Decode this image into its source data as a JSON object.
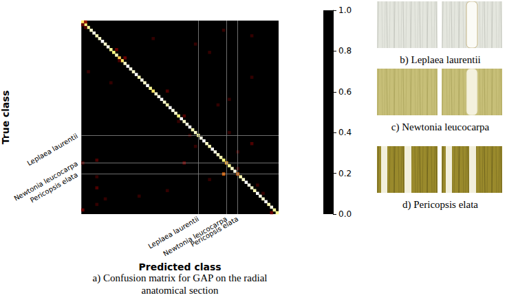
{
  "chart_data": {
    "type": "heatmap",
    "x_label": "Predicted class",
    "y_label": "True class",
    "caption": "a) Confusion matrix for GAP on the radial anatomical section",
    "grid": true,
    "categories": [
      null,
      null,
      null,
      null,
      null,
      null,
      null,
      null,
      null,
      null,
      null,
      null,
      null,
      null,
      null,
      null,
      null,
      null,
      null,
      null,
      null,
      null,
      null,
      null,
      null,
      null,
      null,
      null,
      null,
      null,
      null,
      null,
      null,
      null,
      null,
      null,
      null,
      null,
      null,
      null,
      null,
      "Leplaea laurentii",
      null,
      null,
      null,
      null,
      null,
      null,
      null,
      null,
      null,
      "Newtonia leucocarpa",
      null,
      null,
      null,
      "Pericopsis elata",
      null,
      null,
      null,
      null,
      null,
      null,
      null,
      null,
      null,
      null,
      null,
      null,
      null,
      null
    ],
    "cells": [
      [
        0,
        0,
        0.7
      ],
      [
        1,
        1,
        0.75
      ],
      [
        2,
        2,
        0.8
      ],
      [
        3,
        3,
        0.9
      ],
      [
        4,
        4,
        0.95
      ],
      [
        5,
        5,
        0.85
      ],
      [
        6,
        6,
        0.9
      ],
      [
        7,
        7,
        1.0
      ],
      [
        8,
        8,
        0.9
      ],
      [
        9,
        9,
        0.95
      ],
      [
        10,
        10,
        0.8
      ],
      [
        11,
        11,
        0.75
      ],
      [
        12,
        12,
        0.85
      ],
      [
        13,
        13,
        0.65
      ],
      [
        14,
        14,
        0.7
      ],
      [
        15,
        15,
        0.9
      ],
      [
        16,
        16,
        1.0
      ],
      [
        17,
        17,
        0.95
      ],
      [
        18,
        18,
        0.9
      ],
      [
        19,
        19,
        1.0
      ],
      [
        20,
        20,
        0.85
      ],
      [
        21,
        21,
        0.95
      ],
      [
        22,
        22,
        0.9
      ],
      [
        23,
        23,
        1.0
      ],
      [
        24,
        24,
        0.8
      ],
      [
        25,
        25,
        0.7
      ],
      [
        26,
        26,
        0.9
      ],
      [
        27,
        27,
        0.95
      ],
      [
        28,
        28,
        1.0
      ],
      [
        29,
        29,
        0.9
      ],
      [
        30,
        30,
        0.85
      ],
      [
        31,
        31,
        1.0
      ],
      [
        32,
        32,
        0.95
      ],
      [
        33,
        33,
        0.9
      ],
      [
        34,
        34,
        0.75
      ],
      [
        35,
        35,
        1.0
      ],
      [
        36,
        36,
        0.9
      ],
      [
        37,
        37,
        0.95
      ],
      [
        38,
        38,
        1.0
      ],
      [
        39,
        39,
        0.85
      ],
      [
        40,
        40,
        0.9
      ],
      [
        41,
        41,
        0.8
      ],
      [
        42,
        42,
        0.95
      ],
      [
        43,
        43,
        1.0
      ],
      [
        44,
        44,
        0.9
      ],
      [
        45,
        45,
        0.85
      ],
      [
        46,
        46,
        1.0
      ],
      [
        47,
        47,
        0.95
      ],
      [
        48,
        48,
        0.9
      ],
      [
        49,
        49,
        0.85
      ],
      [
        50,
        50,
        0.75
      ],
      [
        51,
        51,
        0.6
      ],
      [
        52,
        52,
        0.8
      ],
      [
        53,
        53,
        0.9
      ],
      [
        54,
        54,
        0.95
      ],
      [
        55,
        55,
        0.45
      ],
      [
        56,
        56,
        0.85
      ],
      [
        57,
        57,
        0.9
      ],
      [
        58,
        58,
        1.0
      ],
      [
        59,
        59,
        0.95
      ],
      [
        60,
        60,
        0.9
      ],
      [
        61,
        61,
        0.85
      ],
      [
        62,
        62,
        1.0
      ],
      [
        63,
        63,
        0.95
      ],
      [
        64,
        64,
        0.9
      ],
      [
        65,
        65,
        1.0
      ],
      [
        66,
        66,
        0.85
      ],
      [
        67,
        67,
        0.95
      ],
      [
        68,
        68,
        0.8
      ],
      [
        69,
        69,
        0.8
      ],
      [
        0,
        1,
        0.3
      ],
      [
        1,
        0,
        0.2
      ],
      [
        2,
        1,
        0.15
      ],
      [
        55,
        50,
        0.45
      ],
      [
        51,
        36,
        0.2
      ],
      [
        51,
        0,
        0.15
      ],
      [
        50,
        5,
        0.15
      ],
      [
        56,
        5,
        0.1
      ],
      [
        60,
        5,
        0.15
      ],
      [
        66,
        5,
        0.1
      ],
      [
        68,
        0,
        0.2
      ],
      [
        13,
        15,
        0.2
      ],
      [
        14,
        13,
        0.15
      ],
      [
        25,
        30,
        0.15
      ],
      [
        11,
        45,
        0.1
      ],
      [
        20,
        60,
        0.1
      ],
      [
        30,
        48,
        0.1
      ],
      [
        34,
        36,
        0.15
      ],
      [
        40,
        52,
        0.1
      ],
      [
        44,
        60,
        0.15
      ],
      [
        47,
        55,
        0.1
      ],
      [
        41,
        38,
        0.1
      ],
      [
        45,
        40,
        0.1
      ],
      [
        59,
        62,
        0.1
      ],
      [
        63,
        20,
        0.1
      ],
      [
        64,
        8,
        0.1
      ],
      [
        6,
        25,
        0.1
      ],
      [
        8,
        40,
        0.1
      ],
      [
        18,
        2,
        0.1
      ],
      [
        22,
        10,
        0.1
      ],
      [
        28,
        52,
        0.1
      ],
      [
        36,
        34,
        0.1
      ],
      [
        53,
        55,
        0.1
      ],
      [
        57,
        45,
        0.1
      ],
      [
        62,
        64,
        0.1
      ],
      [
        69,
        67,
        0.2
      ],
      [
        61,
        30,
        0.1
      ],
      [
        5,
        60,
        0.1
      ],
      [
        3,
        50,
        0.1
      ],
      [
        10,
        12,
        0.2
      ]
    ],
    "colorbar": {
      "range": [
        0,
        1
      ],
      "ticks": [
        {
          "value": 0,
          "label": "0.0"
        },
        {
          "value": 0.2,
          "label": "0.2"
        },
        {
          "value": 0.4,
          "label": "0.4"
        },
        {
          "value": 0.6,
          "label": "0.6"
        },
        {
          "value": 0.8,
          "label": "0.8"
        },
        {
          "value": 1,
          "label": "1.0"
        }
      ]
    }
  },
  "images": [
    {
      "caption": "b) Leplaea laurentii"
    },
    {
      "caption": "c) Newtonia leucocarpa"
    },
    {
      "caption": "d) Pericopsis elata"
    }
  ]
}
